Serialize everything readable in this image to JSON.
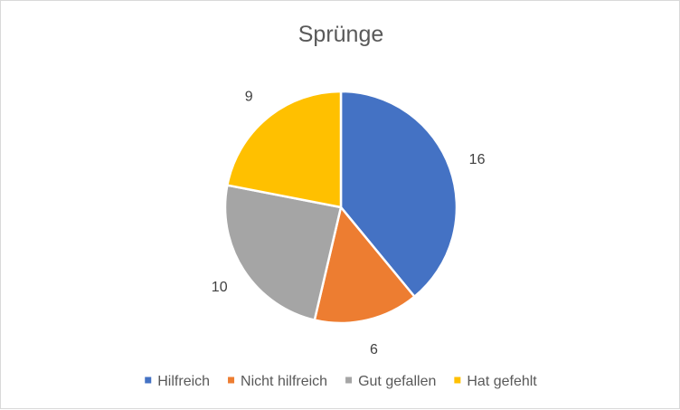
{
  "chart_data": {
    "type": "pie",
    "title": "Sprünge",
    "categories": [
      "Hilfreich",
      "Nicht hilfreich",
      "Gut gefallen",
      "Hat gefehlt"
    ],
    "values": [
      16,
      6,
      10,
      9
    ],
    "colors": [
      "#4472C4",
      "#ED7D31",
      "#A5A5A5",
      "#FFC000"
    ],
    "legend_position": "bottom",
    "start_angle_deg": 0,
    "direction": "clockwise"
  }
}
